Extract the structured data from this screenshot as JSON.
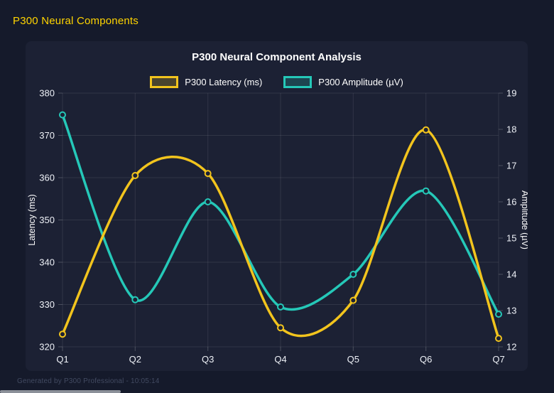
{
  "page": {
    "title": "P300 Neural Components",
    "footer": "Generated by P300 Professional - 10:05:14"
  },
  "chart_data": {
    "type": "line",
    "title": "P300 Neural Component Analysis",
    "categories": [
      "Q1",
      "Q2",
      "Q3",
      "Q4",
      "Q5",
      "Q6",
      "Q7"
    ],
    "series": [
      {
        "name": "P300 Latency (ms)",
        "axis": "left",
        "color": "#f2c41d",
        "values": [
          323,
          360.5,
          361,
          324.5,
          331,
          371.3,
          322
        ]
      },
      {
        "name": "P300 Amplitude (µV)",
        "axis": "right",
        "color": "#25c8b8",
        "values": [
          18.4,
          13.3,
          16.0,
          13.1,
          14.0,
          16.3,
          12.9
        ]
      }
    ],
    "left_axis": {
      "label": "Latency (ms)",
      "min": 320,
      "max": 380,
      "step": 10,
      "ticks": [
        380,
        370,
        360,
        350,
        340,
        330,
        320
      ]
    },
    "right_axis": {
      "label": "Amplitude (µV)",
      "min": 12,
      "max": 19,
      "step": 1,
      "ticks": [
        19,
        18,
        17,
        16,
        15,
        14,
        13,
        12
      ]
    },
    "grid": true,
    "legend_position": "top",
    "line_tension": 0.4,
    "point_style": "hollow-circle"
  },
  "colors": {
    "background": "#151a2b",
    "card": "#1c2134",
    "grid": "rgba(255,255,255,0.09)",
    "tick_stub": "rgba(255,255,255,0.2)",
    "tick_text": "#eef1f7",
    "title_text": "#ffffff",
    "header_yellow": "#ffd400",
    "latency_yellow": "#f2c41d",
    "amplitude_teal": "#25c8b8",
    "footer_text": "#424a61",
    "scrollbar_thumb": "#8b9099"
  }
}
